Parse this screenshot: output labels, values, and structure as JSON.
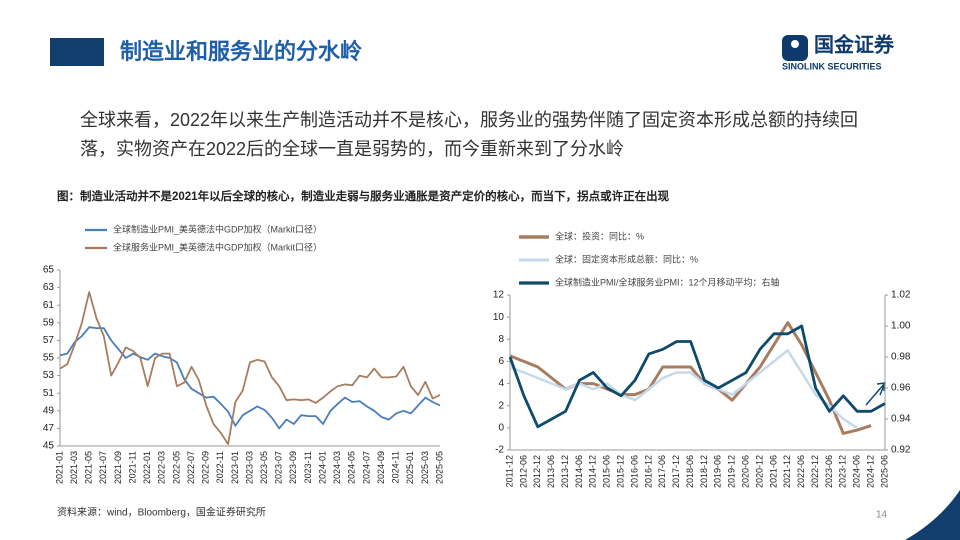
{
  "header": {
    "title": "制造业和服务业的分水岭"
  },
  "logo": {
    "name": "国金证券",
    "subtitle": "SINOLINK SECURITIES"
  },
  "body": {
    "lines": [
      "全球来看，2022年以来生产制造活动并不是核心，服务业的强势伴随了固定资本形成总额的持续回",
      "落，实物资产在2022后的全球一直是弱势的，而今重新来到了分水岭"
    ]
  },
  "figure": {
    "caption": "图：制造业活动并不是2021年以后全球的核心，制造业走弱与服务业通胀是资产定价的核心，而当下，拐点或许正在出现"
  },
  "source": "资料来源：wind，Bloomberg，国金证券研究所",
  "page_number": "14",
  "chart_data": [
    {
      "type": "line",
      "categories": [
        "2021-01",
        null,
        "2021-03",
        null,
        "2021-05",
        null,
        "2021-07",
        null,
        "2021-09",
        null,
        "2021-11",
        null,
        "2022-01",
        null,
        "2022-03",
        null,
        "2022-05",
        null,
        "2022-07",
        null,
        "2022-09",
        null,
        "2022-11",
        null,
        "2023-01",
        null,
        "2023-03",
        null,
        "2023-05",
        null,
        "2023-07",
        null,
        "2023-09",
        null,
        "2023-11",
        null,
        "2024-01",
        null,
        "2024-03",
        null,
        "2024-05",
        null,
        "2024-07",
        null,
        "2024-09",
        null,
        "2024-11",
        null,
        "2025-01",
        null,
        "2025-03",
        null,
        "2025-05"
      ],
      "ylim": [
        45,
        65
      ],
      "yticks": [
        45,
        47,
        49,
        51,
        53,
        55,
        57,
        59,
        61,
        63,
        65
      ],
      "series": [
        {
          "name": "全球制造业PMI_美英德法中GDP加权（Markit口径）",
          "color": "#4a7ebb",
          "values": [
            55.3,
            55.5,
            56.8,
            57.5,
            58.5,
            58.4,
            58.4,
            57.0,
            56.0,
            55.0,
            55.5,
            55.1,
            54.8,
            55.5,
            55.2,
            55.0,
            54.5,
            52.6,
            51.5,
            51.0,
            50.5,
            50.6,
            49.8,
            48.9,
            47.3,
            48.5,
            49.0,
            49.5,
            49.1,
            48.2,
            47.0,
            48.0,
            47.5,
            48.5,
            48.4,
            48.4,
            47.5,
            49.0,
            49.8,
            50.5,
            50.0,
            50.1,
            49.5,
            49.0,
            48.3,
            48.0,
            48.7,
            49.0,
            48.7,
            49.6,
            50.5,
            50.0,
            49.6
          ]
        },
        {
          "name": "全球服务业PMI_美英德法中GDP加权（Markit口径）",
          "color": "#a87d5f",
          "values": [
            53.8,
            54.3,
            56.5,
            59.0,
            62.5,
            59.5,
            57.5,
            53.0,
            54.5,
            56.2,
            55.8,
            55.0,
            51.8,
            55.0,
            55.5,
            55.5,
            51.8,
            52.2,
            54.0,
            52.5,
            49.6,
            47.5,
            46.5,
            45.2,
            50.0,
            51.3,
            54.5,
            54.8,
            54.6,
            52.8,
            51.8,
            50.2,
            50.3,
            50.2,
            50.3,
            49.9,
            50.5,
            51.2,
            51.8,
            52.0,
            51.9,
            53.0,
            52.8,
            53.8,
            52.8,
            52.8,
            52.9,
            54.0,
            51.8,
            50.8,
            52.3,
            50.4,
            50.8
          ]
        }
      ]
    },
    {
      "type": "line",
      "categories": [
        "2011-12",
        "2012-06",
        "2012-12",
        "2013-06",
        "2013-12",
        "2014-06",
        "2014-12",
        "2015-06",
        "2015-12",
        "2016-06",
        "2016-12",
        "2017-06",
        "2017-12",
        "2018-06",
        "2018-12",
        "2019-06",
        "2019-12",
        "2020-06",
        "2020-12",
        "2021-06",
        "2021-12",
        "2022-06",
        "2022-12",
        "2023-06",
        "2023-12",
        "2024-06",
        "2024-12",
        "2025-06"
      ],
      "ylim": [
        -2,
        12
      ],
      "yticks": [
        -2,
        0,
        2,
        4,
        6,
        8,
        10,
        12
      ],
      "y2lim": [
        0.92,
        1.02
      ],
      "y2ticks": [
        0.92,
        0.94,
        0.96,
        0.98,
        {
          "value": 1,
          "label": "1.00"
        },
        1.02
      ],
      "series": [
        {
          "name": "全球：投资：同比：%",
          "color": "#a87d5f",
          "values": [
            6.5,
            6.0,
            5.5,
            4.5,
            3.5,
            4.0,
            4.0,
            3.5,
            3.0,
            3.0,
            3.5,
            5.5,
            5.5,
            5.5,
            4.0,
            3.5,
            2.5,
            4.0,
            5.5,
            7.5,
            9.5,
            7.5,
            5.0,
            2.5,
            -0.5,
            -0.2,
            0.2,
            null
          ]
        },
        {
          "name": "全球：固定资本形成总额：同比：%",
          "color": "#c5d9ec",
          "values": [
            5.5,
            5.0,
            4.5,
            4.0,
            3.5,
            4.0,
            3.5,
            4.0,
            3.0,
            2.5,
            3.5,
            4.5,
            5.0,
            5.0,
            4.0,
            3.5,
            3.0,
            4.0,
            5.0,
            6.0,
            7.0,
            5.0,
            3.0,
            2.0,
            0.8,
            0.0,
            null,
            null
          ]
        },
        {
          "name": "全球制造业PMI/全球服务业PMI：12个月移动平均：右轴",
          "color": "#0d4a6b",
          "axis": "y2",
          "values": [
            0.98,
            0.955,
            0.935,
            0.94,
            0.945,
            0.965,
            0.97,
            0.96,
            0.955,
            0.965,
            0.982,
            0.985,
            0.99,
            0.99,
            0.965,
            0.96,
            0.965,
            0.97,
            0.985,
            0.995,
            0.995,
            1.0,
            0.96,
            0.945,
            0.955,
            0.945,
            0.945,
            0.95
          ]
        }
      ]
    }
  ]
}
